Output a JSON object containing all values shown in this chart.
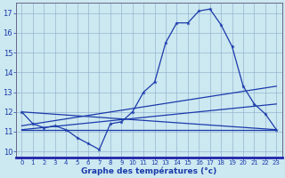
{
  "title": "Graphe des températures (°c)",
  "bg_color": "#cce8f0",
  "line_color": "#1a3aab",
  "hours": [
    0,
    1,
    2,
    3,
    4,
    5,
    6,
    7,
    8,
    9,
    10,
    11,
    12,
    13,
    14,
    15,
    16,
    17,
    18,
    19,
    20,
    21,
    22,
    23
  ],
  "temp_curve": [
    12.0,
    11.4,
    11.2,
    11.3,
    11.1,
    10.7,
    10.4,
    10.1,
    11.4,
    11.5,
    12.0,
    13.0,
    13.5,
    15.5,
    16.5,
    16.5,
    17.1,
    17.2,
    16.4,
    15.3,
    13.3,
    12.4,
    11.9,
    11.1
  ],
  "line_straight1": [
    [
      0,
      23
    ],
    [
      12.0,
      11.1
    ]
  ],
  "line_flat": [
    [
      0,
      23
    ],
    [
      11.1,
      11.1
    ]
  ],
  "line_rising1": [
    [
      0,
      23
    ],
    [
      11.3,
      13.3
    ]
  ],
  "line_rising2": [
    [
      0,
      23
    ],
    [
      11.1,
      12.4
    ]
  ],
  "ylim": [
    9.7,
    17.5
  ],
  "yticks": [
    10,
    11,
    12,
    13,
    14,
    15,
    16,
    17
  ],
  "x_labels": [
    "0",
    "1",
    "2",
    "3",
    "4",
    "5",
    "6",
    "7",
    "8",
    "9",
    "10",
    "11",
    "12",
    "13",
    "14",
    "15",
    "16",
    "17",
    "18",
    "19",
    "20",
    "21",
    "22",
    "23"
  ]
}
